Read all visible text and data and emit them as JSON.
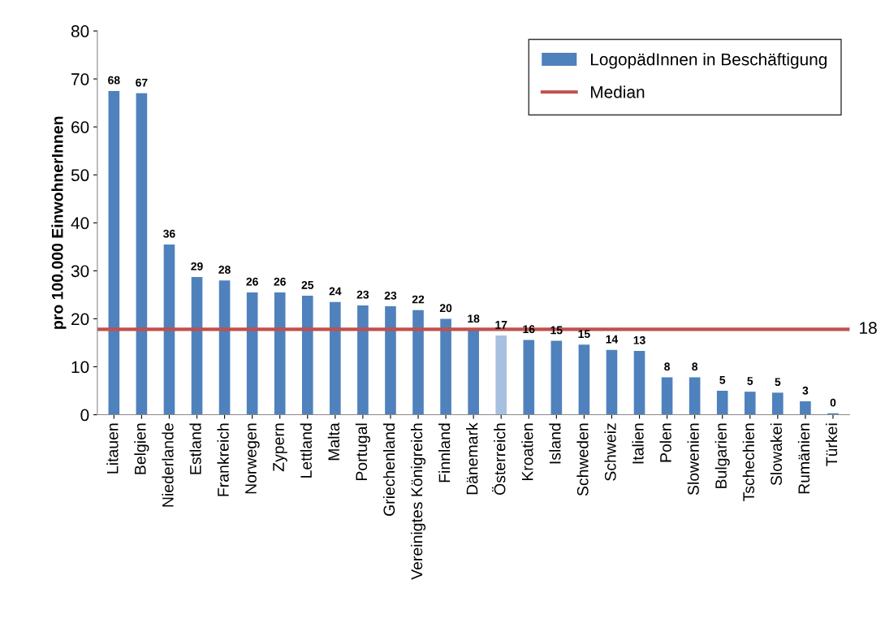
{
  "chart_data": {
    "type": "bar",
    "ylabel": "pro 100.000 EinwohnerInnen",
    "categories": [
      "Litauen",
      "Belgien",
      "Niederlande",
      "Estland",
      "Frankreich",
      "Norwegen",
      "Zypern",
      "Lettland",
      "Malta",
      "Portugal",
      "Griechenland",
      "Vereinigtes Königreich",
      "Finnland",
      "Dänemark",
      "Österreich",
      "Kroatien",
      "Island",
      "Schweden",
      "Schweiz",
      "Italien",
      "Polen",
      "Slowenien",
      "Bulgarien",
      "Tschechien",
      "Slowakei",
      "Rumänien",
      "Türkei"
    ],
    "series": [
      {
        "name": "LogopädInnen in Beschäftigung",
        "color": "#4f81bd",
        "colors": [
          "#4f81bd",
          "#4f81bd",
          "#4f81bd",
          "#4f81bd",
          "#4f81bd",
          "#4f81bd",
          "#4f81bd",
          "#4f81bd",
          "#4f81bd",
          "#4f81bd",
          "#4f81bd",
          "#4f81bd",
          "#4f81bd",
          "#4f81bd",
          "#a7c0e0",
          "#4f81bd",
          "#4f81bd",
          "#4f81bd",
          "#4f81bd",
          "#4f81bd",
          "#4f81bd",
          "#4f81bd",
          "#4f81bd",
          "#4f81bd",
          "#4f81bd",
          "#4f81bd",
          "#4f81bd"
        ],
        "values": [
          67.5,
          67,
          35.5,
          28.7,
          28,
          25.5,
          25.5,
          24.8,
          23.5,
          22.8,
          22.6,
          21.8,
          20,
          17.8,
          16.5,
          15.6,
          15.4,
          14.6,
          13.5,
          13.3,
          7.8,
          7.8,
          5,
          4.8,
          4.6,
          2.8,
          0.3
        ],
        "value_labels": [
          "68",
          "67",
          "36",
          "29",
          "28",
          "26",
          "26",
          "25",
          "24",
          "23",
          "23",
          "22",
          "20",
          "18",
          "17",
          "16",
          "15",
          "15",
          "14",
          "13",
          "8",
          "8",
          "5",
          "5",
          "5",
          "3",
          "0"
        ]
      }
    ],
    "ylim": [
      0,
      80
    ],
    "yticks": [
      0,
      10,
      20,
      30,
      40,
      50,
      60,
      70,
      80
    ],
    "ref_lines": [
      {
        "axis": "y",
        "value": 17.8,
        "label": "Median",
        "color": "#c0504d"
      }
    ],
    "annotations": [
      "18"
    ],
    "grid": false,
    "legend": "top right"
  }
}
